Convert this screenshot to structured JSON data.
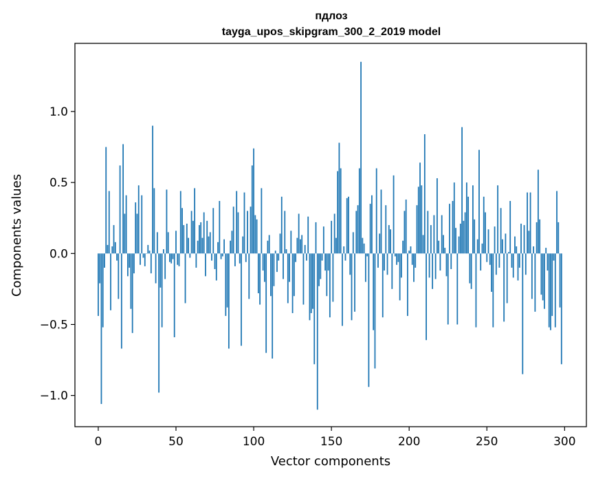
{
  "chart_data": {
    "type": "bar",
    "title_lines": [
      "пдлоз",
      "tayga_upos_skipgram_300_2_2019 model"
    ],
    "xlabel": "Vector components",
    "ylabel": "Components values",
    "xlim": [
      -15,
      314
    ],
    "ylim": [
      -1.22,
      1.48
    ],
    "x_ticks": [
      0,
      50,
      100,
      150,
      200,
      250,
      300
    ],
    "x_tick_labels": [
      "0",
      "50",
      "100",
      "150",
      "200",
      "250",
      "300"
    ],
    "y_ticks": [
      -1.0,
      -0.5,
      0.0,
      0.5,
      1.0
    ],
    "y_tick_labels": [
      "−1.0",
      "−0.5",
      "0.0",
      "0.5",
      "1.0"
    ],
    "grid": false,
    "bar_color": "#1f77b4",
    "values": [
      -0.44,
      -0.21,
      -1.06,
      -0.52,
      -0.1,
      0.75,
      0.06,
      0.44,
      -0.4,
      0.05,
      0.2,
      0.08,
      -0.05,
      -0.32,
      0.62,
      -0.67,
      0.77,
      0.28,
      0.41,
      -0.16,
      -0.1,
      -0.39,
      -0.56,
      -0.14,
      0.36,
      0.28,
      0.48,
      -0.08,
      0.41,
      -0.03,
      -0.09,
      0.0,
      0.06,
      0.02,
      -0.14,
      0.9,
      0.46,
      -0.21,
      0.15,
      -0.98,
      -0.24,
      -0.52,
      0.03,
      -0.18,
      0.45,
      0.15,
      -0.06,
      -0.07,
      -0.04,
      -0.59,
      0.16,
      -0.08,
      -0.09,
      0.44,
      0.32,
      0.2,
      -0.35,
      0.21,
      0.11,
      -0.03,
      0.3,
      0.23,
      0.46,
      -0.1,
      0.09,
      0.2,
      0.22,
      0.11,
      0.29,
      -0.16,
      0.23,
      0.12,
      0.15,
      -0.05,
      0.32,
      -0.11,
      -0.19,
      0.08,
      0.37,
      -0.04,
      -0.02,
      0.1,
      -0.44,
      -0.38,
      -0.67,
      0.09,
      0.16,
      0.33,
      -0.09,
      0.44,
      0.29,
      -0.07,
      -0.65,
      0.12,
      0.43,
      -0.06,
      0.3,
      -0.32,
      0.33,
      0.62,
      0.74,
      0.27,
      0.24,
      -0.28,
      -0.36,
      0.46,
      -0.12,
      -0.2,
      -0.7,
      0.09,
      0.13,
      -0.3,
      -0.74,
      -0.23,
      0.02,
      -0.13,
      -0.05,
      0.14,
      0.4,
      -0.18,
      0.3,
      0.03,
      -0.35,
      -0.2,
      0.16,
      -0.42,
      -0.3,
      -0.06,
      0.11,
      0.28,
      0.1,
      0.13,
      -0.36,
      0.06,
      -0.05,
      0.26,
      -0.47,
      -0.42,
      -0.39,
      -0.78,
      0.22,
      -1.1,
      -0.23,
      -0.18,
      -0.05,
      0.19,
      -0.12,
      -0.3,
      -0.12,
      -0.45,
      0.23,
      -0.34,
      0.28,
      0.11,
      0.58,
      0.78,
      0.6,
      -0.51,
      0.05,
      -0.05,
      0.39,
      0.4,
      -0.15,
      -0.47,
      0.15,
      -0.41,
      0.3,
      0.34,
      0.6,
      1.35,
      0.11,
      0.07,
      -0.2,
      -0.02,
      -0.94,
      0.35,
      0.41,
      -0.54,
      -0.81,
      0.6,
      -0.1,
      0.14,
      0.45,
      -0.45,
      -0.12,
      0.34,
      -0.15,
      0.2,
      0.17,
      -0.25,
      0.55,
      -0.02,
      -0.08,
      -0.06,
      -0.33,
      -0.17,
      0.09,
      0.3,
      0.38,
      -0.44,
      0.02,
      0.05,
      -0.08,
      -0.2,
      -0.1,
      0.34,
      0.47,
      0.64,
      0.48,
      0.13,
      0.84,
      -0.61,
      0.3,
      -0.17,
      0.2,
      -0.25,
      0.27,
      -0.18,
      0.53,
      0.09,
      -0.12,
      0.27,
      0.13,
      0.04,
      -0.16,
      -0.5,
      0.35,
      -0.11,
      0.37,
      0.5,
      0.18,
      -0.5,
      0.12,
      0.21,
      0.89,
      0.23,
      0.29,
      0.5,
      0.4,
      -0.21,
      -0.25,
      0.48,
      0.24,
      -0.52,
      0.1,
      0.73,
      -0.12,
      0.07,
      0.4,
      0.29,
      -0.06,
      0.17,
      -0.08,
      -0.27,
      -0.52,
      0.19,
      -0.15,
      0.48,
      -0.1,
      0.32,
      0.1,
      -0.48,
      0.14,
      -0.35,
      0.01,
      0.37,
      -0.1,
      -0.17,
      0.12,
      0.05,
      -0.19,
      -0.1,
      0.21,
      -0.85,
      0.2,
      -0.15,
      0.43,
      0.16,
      0.43,
      -0.32,
      0.05,
      -0.41,
      0.22,
      0.59,
      0.24,
      -0.29,
      -0.33,
      -0.39,
      0.04,
      -0.12,
      -0.52,
      -0.54,
      -0.44,
      -0.05,
      -0.52,
      0.44,
      0.22,
      -0.38,
      -0.78
    ]
  }
}
